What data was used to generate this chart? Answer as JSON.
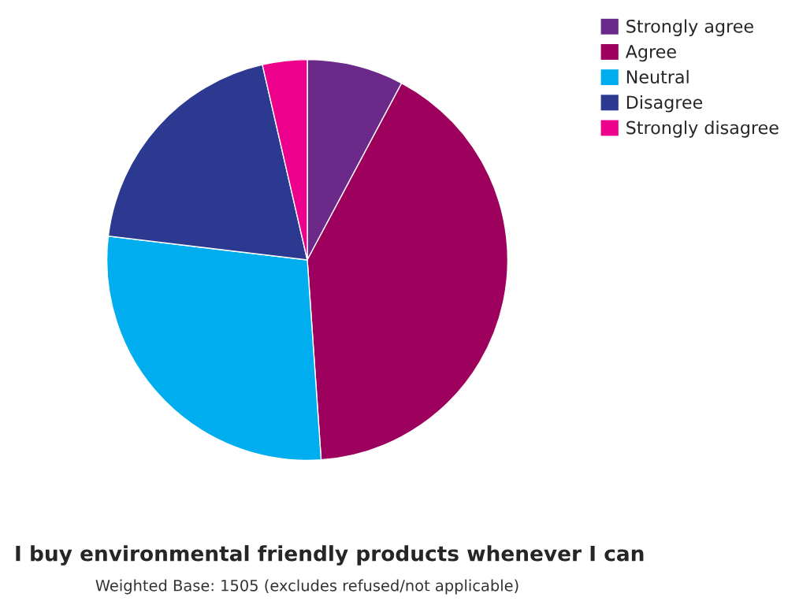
{
  "chart_data": {
    "type": "pie",
    "title": "I buy environmental friendly products whenever I can",
    "subtitle": "Weighted Base: 1505 (excludes refused/not applicable)",
    "categories": [
      "Strongly agree",
      "Agree",
      "Neutral",
      "Disagree",
      "Strongly disagree"
    ],
    "values": [
      7.8,
      41.1,
      28.0,
      19.5,
      3.6
    ],
    "colors": [
      "#6b2a8a",
      "#9e005d",
      "#00aeef",
      "#2b3990",
      "#ec008c"
    ],
    "legend": "top right"
  }
}
